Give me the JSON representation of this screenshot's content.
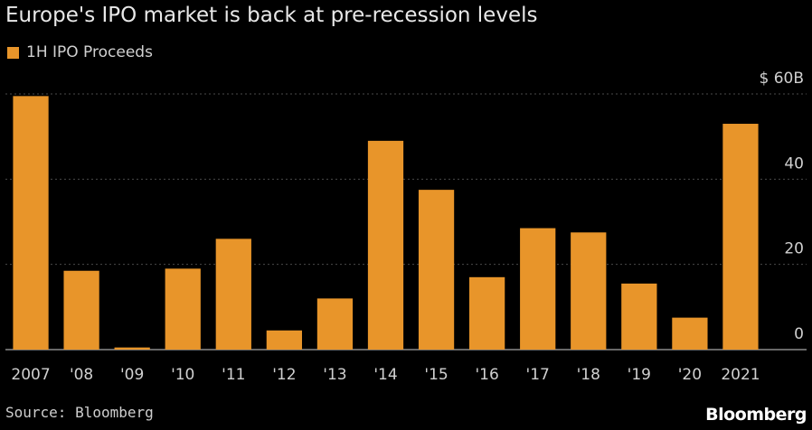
{
  "title": "Europe's IPO market is back at pre-recession levels",
  "source": "Source: Bloomberg",
  "brand": "Bloomberg",
  "colors": {
    "bar": "#e8952a",
    "grid": "#4a4a4a",
    "background": "#000000"
  },
  "chart_data": {
    "type": "bar",
    "title": "Europe's IPO market is back at pre-recession levels",
    "categories": [
      "2007",
      "'08",
      "'09",
      "'10",
      "'11",
      "'12",
      "'13",
      "'14",
      "'15",
      "'16",
      "'17",
      "'18",
      "'19",
      "'20",
      "2021"
    ],
    "series": [
      {
        "name": "1H IPO Proceeds",
        "values": [
          59.5,
          18.5,
          0.5,
          19,
          26,
          4.5,
          12,
          49,
          37.5,
          17,
          28.5,
          27.5,
          15.5,
          7.5,
          53
        ]
      }
    ],
    "ylim": [
      0,
      60
    ],
    "yticks": [
      0,
      20,
      40,
      60
    ],
    "ytick_labels": [
      "0",
      "20",
      "40",
      "$ 60B"
    ],
    "y_axis_side": "right",
    "grid": true,
    "legend_position": "top-left"
  }
}
